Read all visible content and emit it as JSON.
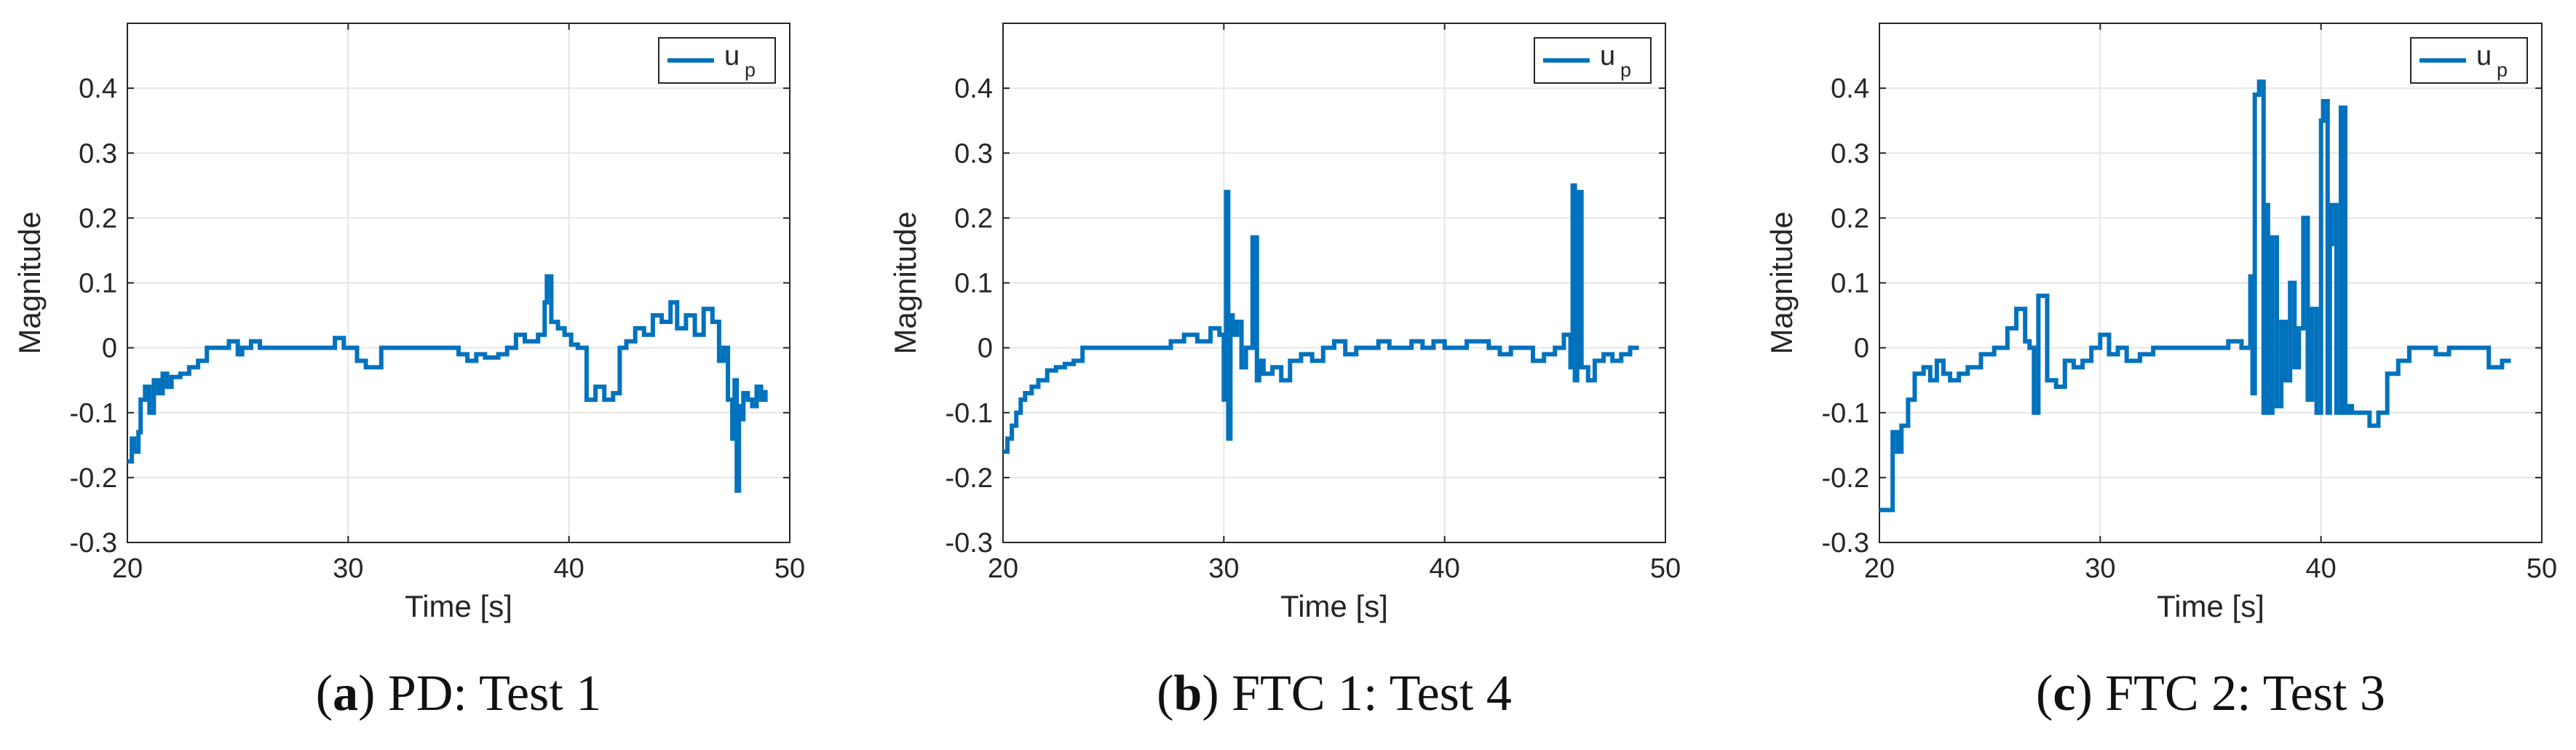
{
  "chart_data": [
    {
      "type": "line",
      "caption_letter": "a",
      "caption_text": "PD: Test 1",
      "xlabel": "Time [s]",
      "ylabel": "Magnitude",
      "xlim": [
        20,
        50
      ],
      "ylim": [
        -0.3,
        0.5
      ],
      "xticks": [
        "20",
        "30",
        "40",
        "50"
      ],
      "yticks": [
        "-0.3",
        "-0.2",
        "-0.1",
        "0",
        "0.1",
        "0.2",
        "0.3",
        "0.4"
      ],
      "grid": true,
      "legend": {
        "label": "u",
        "subscript": "p",
        "position": "top-right"
      },
      "series": [
        {
          "name": "u_p",
          "color": "#0072BD",
          "x": [
            20.0,
            20.2,
            20.3,
            20.5,
            20.6,
            20.8,
            21.0,
            21.2,
            21.4,
            21.6,
            21.8,
            22.0,
            22.4,
            22.8,
            23.2,
            23.6,
            24.0,
            24.6,
            25.0,
            25.2,
            25.6,
            26.0,
            27.0,
            28.0,
            29.0,
            29.4,
            29.8,
            30.4,
            30.8,
            31.5,
            32.5,
            33.5,
            34.5,
            35.0,
            35.4,
            35.8,
            36.2,
            36.8,
            37.2,
            37.6,
            38.0,
            38.6,
            38.9,
            39.0,
            39.2,
            39.5,
            39.8,
            40.1,
            40.4,
            40.8,
            41.2,
            41.6,
            42.0,
            42.3,
            42.6,
            43.0,
            43.4,
            43.8,
            44.2,
            44.6,
            44.9,
            45.3,
            45.7,
            46.1,
            46.5,
            46.8,
            47.0,
            47.2,
            47.4,
            47.5,
            47.6,
            47.7,
            47.8,
            47.9,
            48.1,
            48.3,
            48.5,
            48.7,
            48.9
          ],
          "y": [
            -0.175,
            -0.14,
            -0.16,
            -0.13,
            -0.08,
            -0.06,
            -0.1,
            -0.05,
            -0.07,
            -0.04,
            -0.06,
            -0.045,
            -0.04,
            -0.03,
            -0.02,
            0.0,
            0.0,
            0.01,
            -0.01,
            0.0,
            0.01,
            0.0,
            0.0,
            0.0,
            0.0,
            0.015,
            0.0,
            -0.02,
            -0.03,
            0.0,
            0.0,
            0.0,
            0.0,
            -0.01,
            -0.02,
            -0.01,
            -0.015,
            -0.01,
            0.0,
            0.02,
            0.01,
            0.02,
            0.07,
            0.11,
            0.04,
            0.03,
            0.02,
            0.005,
            0.0,
            -0.08,
            -0.06,
            -0.08,
            -0.07,
            0.0,
            0.01,
            0.03,
            0.02,
            0.05,
            0.04,
            0.07,
            0.03,
            0.05,
            0.02,
            0.06,
            0.04,
            -0.02,
            0.0,
            -0.08,
            -0.14,
            -0.05,
            -0.22,
            -0.09,
            -0.11,
            -0.07,
            -0.08,
            -0.09,
            -0.06,
            -0.08,
            -0.065
          ]
        }
      ]
    },
    {
      "type": "line",
      "caption_letter": "b",
      "caption_text": "FTC 1: Test 4",
      "xlabel": "Time [s]",
      "ylabel": "Magnitude",
      "xlim": [
        20,
        50
      ],
      "ylim": [
        -0.3,
        0.5
      ],
      "xticks": [
        "20",
        "30",
        "40",
        "50"
      ],
      "yticks": [
        "-0.3",
        "-0.2",
        "-0.1",
        "0",
        "0.1",
        "0.2",
        "0.3",
        "0.4"
      ],
      "grid": true,
      "legend": {
        "label": "u",
        "subscript": "p",
        "position": "top-right"
      },
      "series": [
        {
          "name": "u_p",
          "color": "#0072BD",
          "x": [
            20.0,
            20.2,
            20.4,
            20.6,
            20.8,
            21.0,
            21.3,
            21.6,
            22.0,
            22.4,
            22.8,
            23.2,
            23.6,
            24.2,
            25.0,
            25.8,
            26.4,
            27.0,
            27.6,
            28.2,
            28.8,
            29.4,
            29.8,
            30.0,
            30.1,
            30.2,
            30.3,
            30.4,
            30.6,
            30.8,
            31.0,
            31.3,
            31.5,
            31.6,
            31.8,
            32.2,
            32.6,
            33.0,
            33.5,
            34.0,
            34.5,
            35.0,
            35.5,
            36.0,
            36.5,
            37.0,
            37.5,
            38.0,
            38.5,
            39.0,
            39.5,
            40.0,
            40.5,
            41.0,
            42.0,
            42.5,
            43.0,
            43.5,
            44.0,
            44.5,
            45.0,
            45.4,
            45.7,
            45.8,
            45.9,
            46.0,
            46.2,
            46.5,
            46.8,
            47.2,
            47.6,
            48.0,
            48.4,
            48.8
          ],
          "y": [
            -0.16,
            -0.14,
            -0.12,
            -0.1,
            -0.08,
            -0.07,
            -0.06,
            -0.05,
            -0.035,
            -0.03,
            -0.025,
            -0.02,
            0.0,
            0.0,
            0.0,
            0.0,
            0.0,
            0.0,
            0.01,
            0.02,
            0.01,
            0.03,
            0.02,
            -0.08,
            0.24,
            -0.14,
            0.05,
            0.02,
            0.04,
            -0.03,
            0.0,
            0.17,
            -0.05,
            -0.02,
            -0.04,
            -0.03,
            -0.05,
            -0.02,
            -0.01,
            -0.02,
            0.0,
            0.01,
            -0.01,
            0.0,
            0.0,
            0.01,
            0.0,
            0.0,
            0.01,
            0.0,
            0.01,
            0.0,
            0.0,
            0.01,
            0.0,
            -0.01,
            0.0,
            0.0,
            -0.02,
            -0.01,
            0.0,
            0.02,
            -0.03,
            0.25,
            -0.05,
            0.24,
            -0.03,
            -0.05,
            -0.02,
            -0.01,
            -0.02,
            -0.01,
            0.0,
            0.0
          ]
        }
      ]
    },
    {
      "type": "line",
      "caption_letter": "c",
      "caption_text": "FTC 2: Test 3",
      "xlabel": "Time [s]",
      "ylabel": "Magnitude",
      "xlim": [
        20,
        50
      ],
      "ylim": [
        -0.3,
        0.5
      ],
      "xticks": [
        "20",
        "30",
        "40",
        "50"
      ],
      "yticks": [
        "-0.3",
        "-0.2",
        "-0.1",
        "0",
        "0.1",
        "0.2",
        "0.3",
        "0.4"
      ],
      "grid": true,
      "legend": {
        "label": "u",
        "subscript": "p",
        "position": "top-right"
      },
      "series": [
        {
          "name": "u_p",
          "color": "#0072BD",
          "x": [
            20.0,
            20.4,
            20.6,
            20.8,
            21.0,
            21.3,
            21.6,
            22.0,
            22.3,
            22.6,
            22.9,
            23.2,
            23.6,
            24.0,
            24.6,
            25.2,
            25.8,
            26.2,
            26.6,
            26.8,
            27.0,
            27.2,
            27.6,
            28.0,
            28.4,
            28.8,
            29.2,
            29.6,
            30.0,
            30.4,
            30.8,
            31.2,
            31.8,
            32.4,
            33.0,
            33.6,
            34.2,
            35.0,
            35.8,
            36.4,
            36.8,
            36.9,
            37.0,
            37.2,
            37.4,
            37.5,
            37.6,
            37.8,
            38.0,
            38.2,
            38.4,
            38.6,
            38.8,
            39.0,
            39.2,
            39.4,
            39.6,
            39.8,
            40.0,
            40.1,
            40.3,
            40.4,
            40.5,
            40.7,
            40.9,
            41.1,
            41.2,
            41.4,
            41.8,
            42.2,
            42.6,
            43.0,
            43.5,
            44.0,
            44.6,
            45.2,
            45.8,
            46.4,
            47.0,
            47.6,
            48.2,
            48.6
          ],
          "y": [
            -0.25,
            -0.25,
            -0.13,
            -0.16,
            -0.12,
            -0.08,
            -0.04,
            -0.03,
            -0.05,
            -0.02,
            -0.04,
            -0.05,
            -0.04,
            -0.03,
            -0.01,
            0.0,
            0.03,
            0.06,
            0.01,
            0.0,
            -0.1,
            0.08,
            -0.05,
            -0.06,
            -0.02,
            -0.03,
            -0.02,
            0.0,
            0.02,
            -0.01,
            0.0,
            -0.02,
            -0.01,
            0.0,
            0.0,
            0.0,
            0.0,
            0.0,
            0.01,
            0.0,
            0.11,
            -0.07,
            0.39,
            0.41,
            -0.1,
            0.22,
            -0.1,
            0.17,
            -0.09,
            0.04,
            -0.05,
            0.1,
            -0.03,
            0.03,
            0.2,
            -0.08,
            0.06,
            -0.1,
            0.35,
            0.38,
            -0.1,
            0.16,
            0.22,
            -0.1,
            0.37,
            -0.1,
            -0.09,
            -0.1,
            -0.1,
            -0.12,
            -0.1,
            -0.04,
            -0.02,
            0.0,
            0.0,
            -0.01,
            0.0,
            0.0,
            0.0,
            -0.03,
            -0.02,
            -0.02
          ]
        }
      ]
    }
  ]
}
